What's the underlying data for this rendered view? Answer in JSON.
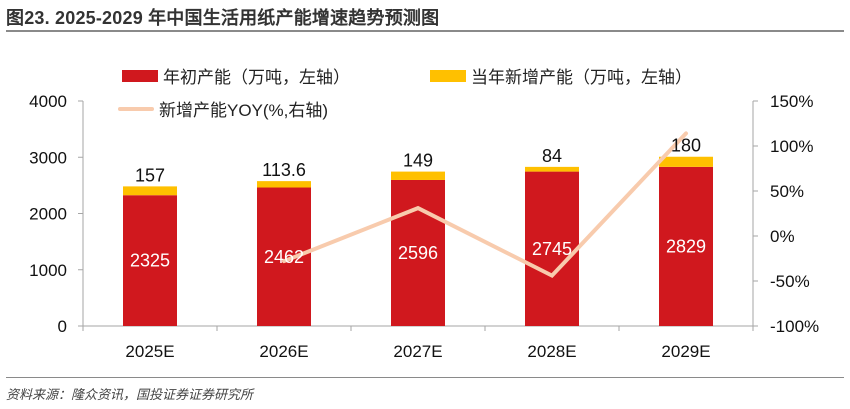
{
  "title": "图23. 2025-2029 年中国生活用纸产能增速趋势预测图",
  "source": "资料来源：隆众资讯，国投证券证券研究所",
  "legend": {
    "base": "年初产能（万吨，左轴）",
    "added": "当年新增产能（万吨，左轴）",
    "yoy": "新增产能YOY(%,右轴)"
  },
  "colors": {
    "base": "#D0181E",
    "added": "#FFC000",
    "yoy": "#F8CBAD",
    "axis": "#A6A6A6"
  },
  "chart_data": {
    "type": "bar",
    "title": "2025-2029 年中国生活用纸产能增速趋势预测图",
    "categories": [
      "2025E",
      "2026E",
      "2027E",
      "2028E",
      "2029E"
    ],
    "stacked": true,
    "series": [
      {
        "name": "年初产能（万吨，左轴）",
        "type": "bar",
        "axis": "left",
        "values": [
          2325,
          2462,
          2596,
          2745,
          2829
        ]
      },
      {
        "name": "当年新增产能（万吨，左轴）",
        "type": "bar",
        "axis": "left",
        "values": [
          157,
          113.6,
          149,
          84,
          180
        ]
      },
      {
        "name": "新增产能YOY(%,右轴)",
        "type": "line",
        "axis": "right",
        "values": [
          null,
          -28,
          31,
          -44,
          114
        ]
      }
    ],
    "left_axis": {
      "min": 0,
      "max": 4000,
      "ticks": [
        0,
        1000,
        2000,
        3000,
        4000
      ]
    },
    "right_axis": {
      "min": -100,
      "max": 150,
      "ticks": [
        "-100%",
        "-50%",
        "0%",
        "50%",
        "100%",
        "150%"
      ]
    },
    "xlabel": "",
    "ylabel": "",
    "grid": false,
    "legend_position": "top"
  }
}
